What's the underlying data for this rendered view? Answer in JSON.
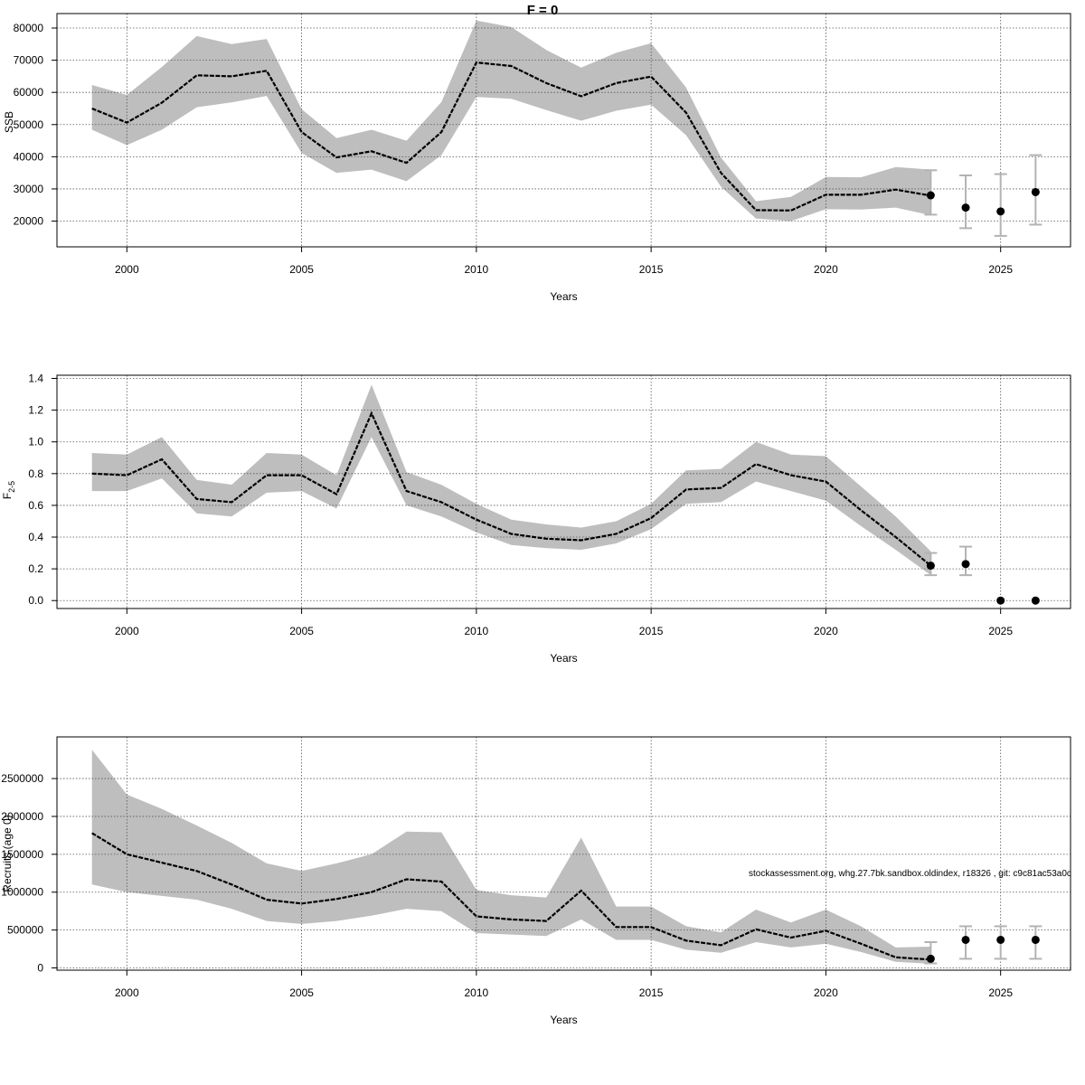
{
  "title": "F = 0",
  "footnote": "stockassessment.org, whg.27.7bk.sandbox.oldindex, r18326 , git: c9c81ac53a0c",
  "colors": {
    "band": "#bebebe",
    "line": "#000000",
    "errorbar": "#b3b3b3",
    "grid": "#555555"
  },
  "chart_data": [
    {
      "type": "line",
      "xlabel": "Years",
      "ylabel": "SSB",
      "xlim": [
        1998,
        2027
      ],
      "ylim": [
        12000,
        84500
      ],
      "xticks": [
        2000,
        2005,
        2010,
        2015,
        2020,
        2025
      ],
      "yticks": [
        20000,
        30000,
        40000,
        50000,
        60000,
        70000,
        80000
      ],
      "grid": true,
      "estimate": {
        "x": [
          1999,
          2000,
          2001,
          2002,
          2003,
          2004,
          2005,
          2006,
          2007,
          2008,
          2009,
          2010,
          2011,
          2012,
          2013,
          2014,
          2015,
          2016,
          2017,
          2018,
          2019,
          2020,
          2021,
          2022,
          2023
        ],
        "y": [
          55000,
          50600,
          56800,
          65300,
          65000,
          66700,
          47700,
          39800,
          41700,
          38100,
          47700,
          69300,
          68200,
          62900,
          58800,
          62900,
          64900,
          53700,
          35000,
          23400,
          23300,
          28200,
          28200,
          29800,
          27900
        ],
        "lower": [
          48400,
          43600,
          48400,
          55400,
          56900,
          58900,
          41200,
          35000,
          36000,
          32400,
          40500,
          58600,
          58000,
          54500,
          51200,
          54300,
          56200,
          46700,
          30700,
          20800,
          20000,
          23700,
          23600,
          24200,
          21800
        ],
        "upper": [
          62300,
          59200,
          67900,
          77500,
          75000,
          76600,
          54800,
          45800,
          48400,
          45000,
          57000,
          82300,
          80300,
          73200,
          67700,
          72300,
          75300,
          61500,
          39800,
          26200,
          27500,
          33700,
          33600,
          36800,
          36000
        ]
      },
      "forecast": {
        "x": [
          2023,
          2024,
          2025,
          2026
        ],
        "y": [
          28000,
          24200,
          23000,
          29000
        ],
        "lower": [
          22000,
          17800,
          15400,
          18900
        ],
        "upper": [
          35800,
          34200,
          34600,
          40500
        ]
      }
    },
    {
      "type": "line",
      "xlabel": "Years",
      "ylabel": "F",
      "ylabel_sub": "2-5",
      "xlim": [
        1998,
        2027
      ],
      "ylim": [
        -0.05,
        1.42
      ],
      "xticks": [
        2000,
        2005,
        2010,
        2015,
        2020,
        2025
      ],
      "yticks": [
        0.0,
        0.2,
        0.4,
        0.6,
        0.8,
        1.0,
        1.2,
        1.4
      ],
      "yticks_decimals": 1,
      "grid": true,
      "estimate": {
        "x": [
          1999,
          2000,
          2001,
          2002,
          2003,
          2004,
          2005,
          2006,
          2007,
          2008,
          2009,
          2010,
          2011,
          2012,
          2013,
          2014,
          2015,
          2016,
          2017,
          2018,
          2019,
          2020,
          2021,
          2022,
          2023
        ],
        "y": [
          0.8,
          0.79,
          0.89,
          0.64,
          0.62,
          0.79,
          0.79,
          0.67,
          1.18,
          0.69,
          0.62,
          0.51,
          0.42,
          0.39,
          0.38,
          0.42,
          0.52,
          0.7,
          0.71,
          0.86,
          0.79,
          0.75,
          0.57,
          0.4,
          0.22
        ],
        "lower": [
          0.69,
          0.69,
          0.77,
          0.55,
          0.53,
          0.68,
          0.69,
          0.58,
          1.03,
          0.6,
          0.53,
          0.43,
          0.35,
          0.33,
          0.32,
          0.36,
          0.45,
          0.61,
          0.62,
          0.75,
          0.69,
          0.63,
          0.47,
          0.32,
          0.16
        ],
        "upper": [
          0.93,
          0.92,
          1.03,
          0.76,
          0.73,
          0.93,
          0.92,
          0.79,
          1.36,
          0.81,
          0.73,
          0.61,
          0.51,
          0.48,
          0.46,
          0.5,
          0.61,
          0.82,
          0.83,
          1.0,
          0.92,
          0.91,
          0.72,
          0.53,
          0.31
        ]
      },
      "forecast": {
        "x": [
          2023,
          2024,
          2025,
          2026
        ],
        "y": [
          0.22,
          0.23,
          0.0,
          0.0
        ],
        "lower": [
          0.16,
          0.16,
          0.0,
          0.0
        ],
        "upper": [
          0.3,
          0.34,
          0.0,
          0.0
        ]
      }
    },
    {
      "type": "line",
      "xlabel": "Years",
      "ylabel": "Recruits (age 0)",
      "xlim": [
        1998,
        2027
      ],
      "ylim": [
        -30000,
        3050000
      ],
      "xticks": [
        2000,
        2005,
        2010,
        2015,
        2020,
        2025
      ],
      "yticks": [
        0,
        500000,
        1000000,
        1500000,
        2000000,
        2500000
      ],
      "grid": true,
      "estimate": {
        "x": [
          1999,
          2000,
          2001,
          2002,
          2003,
          2004,
          2005,
          2006,
          2007,
          2008,
          2009,
          2010,
          2011,
          2012,
          2013,
          2014,
          2015,
          2016,
          2017,
          2018,
          2019,
          2020,
          2021,
          2022,
          2023
        ],
        "y": [
          1780000,
          1500000,
          1390000,
          1280000,
          1100000,
          900000,
          850000,
          910000,
          1000000,
          1170000,
          1140000,
          680000,
          640000,
          620000,
          1020000,
          540000,
          540000,
          360000,
          300000,
          510000,
          400000,
          490000,
          320000,
          140000,
          110000
        ],
        "lower": [
          1100000,
          1000000,
          950000,
          900000,
          780000,
          620000,
          580000,
          620000,
          690000,
          780000,
          750000,
          460000,
          440000,
          420000,
          640000,
          370000,
          370000,
          240000,
          200000,
          340000,
          270000,
          320000,
          210000,
          80000,
          55000
        ],
        "upper": [
          2880000,
          2290000,
          2100000,
          1880000,
          1650000,
          1380000,
          1280000,
          1380000,
          1500000,
          1800000,
          1790000,
          1030000,
          960000,
          930000,
          1720000,
          810000,
          810000,
          550000,
          470000,
          770000,
          600000,
          770000,
          550000,
          270000,
          280000
        ]
      },
      "forecast": {
        "x": [
          2023,
          2024,
          2025,
          2026
        ],
        "y": [
          120000,
          370000,
          370000,
          370000
        ],
        "lower": [
          60000,
          120000,
          120000,
          120000
        ],
        "upper": [
          340000,
          550000,
          550000,
          550000
        ]
      }
    }
  ]
}
